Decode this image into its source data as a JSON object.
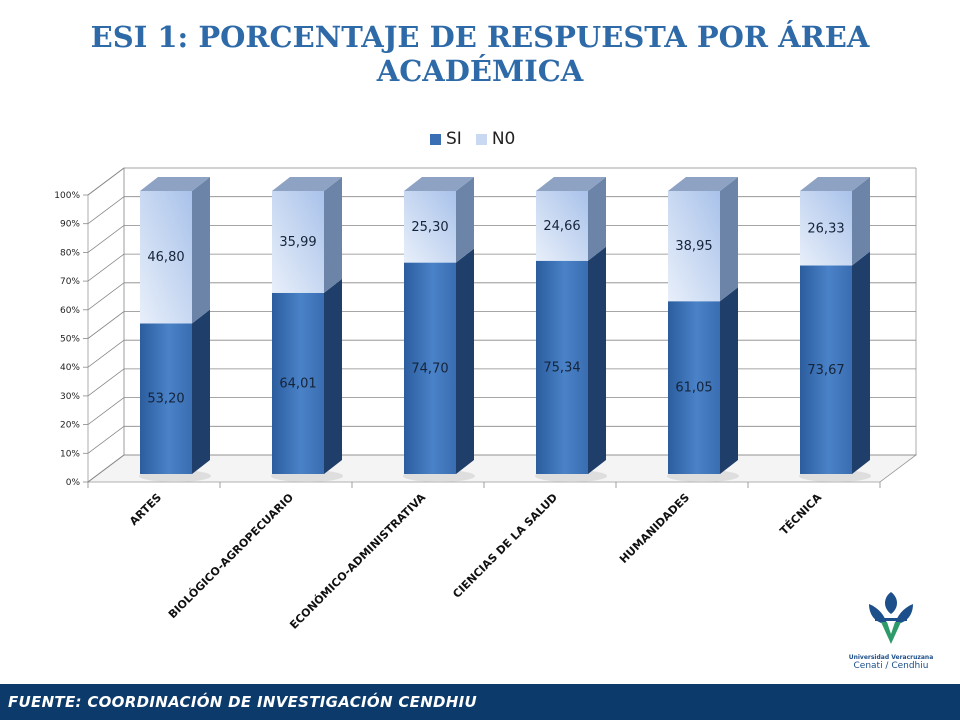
{
  "header": {
    "title_line1": "ESI  1: PORCENTAJE DE RESPUESTA POR ÁREA",
    "title_line2": "ACADÉMICA"
  },
  "legend": {
    "si_label": "SI",
    "no_label": "N0"
  },
  "footer": {
    "source": "FUENTE:  COORDINACIÓN DE   INVESTIGACIÓN CENDHIU"
  },
  "logo": {
    "university": "Universidad Veracruzana",
    "unit": "Cenati / Cendhiu"
  },
  "colors": {
    "si": "#3b6fb4",
    "no": "#c9d9f2",
    "title": "#2e6aa8",
    "footer": "#0b3a6b"
  },
  "chart_data": {
    "type": "bar",
    "stacked": true,
    "percent": true,
    "categories": [
      "ARTES",
      "BIOLÓGICO-AGROPECUARIO",
      "ECONÓMICO-ADMINISTRATIVA",
      "CIENCIAS DE LA SALUD",
      "HUMANIDADES",
      "TÉCNICA"
    ],
    "series": [
      {
        "name": "SI",
        "values": [
          53.2,
          64.01,
          74.7,
          75.34,
          61.05,
          73.67
        ],
        "labels": [
          "53,20",
          "64,01",
          "74,70",
          "75,34",
          "61,05",
          "73,67"
        ]
      },
      {
        "name": "N0",
        "values": [
          46.8,
          35.99,
          25.3,
          24.66,
          38.95,
          26.33
        ],
        "labels": [
          "46,80",
          "35,99",
          "25,30",
          "24,66",
          "38,95",
          "26,33"
        ]
      }
    ],
    "y_ticks": [
      "0%",
      "10%",
      "20%",
      "30%",
      "40%",
      "50%",
      "60%",
      "70%",
      "80%",
      "90%",
      "100%"
    ],
    "ylim": [
      0,
      100
    ],
    "grid": true,
    "legend_position": "top"
  }
}
